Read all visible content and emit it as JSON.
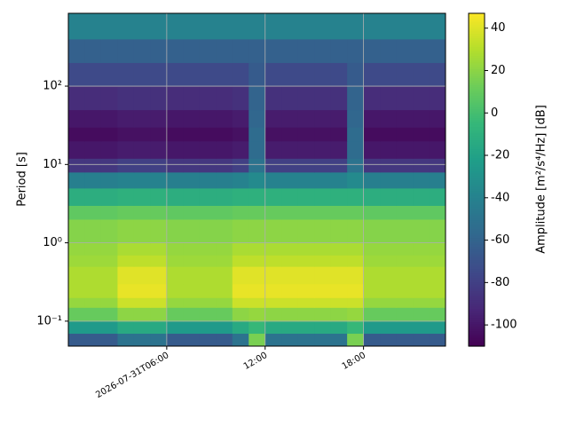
{
  "chart_data": {
    "type": "heatmap",
    "colormap": "viridis",
    "grid": true,
    "ylabel": "Period [s]",
    "colorbar_label": "Amplitude [m²/s⁴/Hz] [dB]",
    "ylog": true,
    "xlim": [
      "2026-07-31T00:00",
      "2026-07-31T23:00"
    ],
    "xticks": [
      {
        "value": "2026-07-31T06:00",
        "label": "2026-07-31T06:00"
      },
      {
        "value": "2026-07-31T12:00",
        "label": "12:00"
      },
      {
        "value": "2026-07-31T18:00",
        "label": "18:00"
      }
    ],
    "ylim": [
      0.048,
      850
    ],
    "yticks": [
      {
        "value": 0.1,
        "label": "10⁻¹"
      },
      {
        "value": 1,
        "label": "10⁰"
      },
      {
        "value": 10,
        "label": "10¹"
      },
      {
        "value": 100,
        "label": "10²"
      }
    ],
    "clim": [
      -110,
      47
    ],
    "cticks": [
      -100,
      -80,
      -60,
      -40,
      -20,
      0,
      20,
      40
    ],
    "x": [
      "2026-07-31T00:00",
      "2026-07-31T01:00",
      "2026-07-31T02:00",
      "2026-07-31T03:00",
      "2026-07-31T04:00",
      "2026-07-31T05:00",
      "2026-07-31T06:00",
      "2026-07-31T07:00",
      "2026-07-31T08:00",
      "2026-07-31T09:00",
      "2026-07-31T10:00",
      "2026-07-31T11:00",
      "2026-07-31T12:00",
      "2026-07-31T13:00",
      "2026-07-31T14:00",
      "2026-07-31T15:00",
      "2026-07-31T16:00",
      "2026-07-31T17:00",
      "2026-07-31T18:00",
      "2026-07-31T19:00",
      "2026-07-31T20:00",
      "2026-07-31T21:00",
      "2026-07-31T22:00",
      "2026-07-31T23:00"
    ],
    "y": [
      0.048,
      0.07,
      0.1,
      0.15,
      0.2,
      0.3,
      0.5,
      0.7,
      1,
      2,
      3,
      5,
      8,
      12,
      20,
      30,
      50,
      100,
      200,
      400,
      850
    ],
    "values": [
      [
        -65,
        -65,
        -65,
        -50,
        -50,
        -50,
        -65,
        -65,
        -65,
        -65,
        -50,
        15,
        -50,
        -50,
        -50,
        -50,
        -50,
        15,
        -65,
        -65,
        -65,
        -65,
        -65
      ],
      [
        -25,
        -25,
        -25,
        -15,
        -15,
        -15,
        -25,
        -25,
        -25,
        -25,
        -15,
        -5,
        -15,
        -15,
        -15,
        -15,
        -15,
        -5,
        -25,
        -25,
        -25,
        -25,
        -25
      ],
      [
        10,
        10,
        10,
        20,
        20,
        20,
        10,
        10,
        10,
        10,
        20,
        22,
        20,
        20,
        20,
        20,
        20,
        22,
        10,
        10,
        10,
        10,
        10
      ],
      [
        22,
        22,
        22,
        35,
        35,
        35,
        22,
        22,
        22,
        22,
        35,
        35,
        35,
        35,
        35,
        35,
        35,
        35,
        22,
        22,
        22,
        22,
        22
      ],
      [
        28,
        28,
        28,
        42,
        42,
        42,
        28,
        28,
        28,
        28,
        42,
        42,
        42,
        42,
        42,
        42,
        42,
        42,
        28,
        28,
        28,
        28,
        28
      ],
      [
        28,
        28,
        28,
        40,
        40,
        40,
        28,
        28,
        28,
        28,
        40,
        40,
        40,
        40,
        40,
        40,
        40,
        40,
        28,
        28,
        28,
        28,
        28
      ],
      [
        24,
        24,
        24,
        32,
        32,
        32,
        24,
        24,
        24,
        24,
        32,
        32,
        32,
        32,
        32,
        32,
        32,
        32,
        24,
        24,
        24,
        24,
        24
      ],
      [
        22,
        22,
        22,
        27,
        27,
        27,
        22,
        22,
        22,
        22,
        27,
        27,
        27,
        27,
        27,
        27,
        27,
        27,
        22,
        22,
        22,
        22,
        22
      ],
      [
        18,
        18,
        18,
        20,
        20,
        20,
        18,
        18,
        18,
        18,
        20,
        20,
        20,
        20,
        20,
        20,
        20,
        20,
        18,
        18,
        18,
        18,
        18
      ],
      [
        8,
        8,
        8,
        10,
        10,
        10,
        8,
        8,
        8,
        8,
        10,
        10,
        10,
        10,
        10,
        10,
        10,
        10,
        8,
        8,
        8,
        8,
        8
      ],
      [
        -12,
        -12,
        -12,
        -10,
        -10,
        -10,
        -12,
        -12,
        -12,
        -12,
        -10,
        -10,
        -10,
        -10,
        -10,
        -10,
        -10,
        -10,
        -12,
        -12,
        -12,
        -12,
        -12
      ],
      [
        -42,
        -42,
        -42,
        -40,
        -40,
        -40,
        -42,
        -42,
        -42,
        -42,
        -40,
        -35,
        -40,
        -40,
        -40,
        -40,
        -40,
        -35,
        -42,
        -42,
        -42,
        -42,
        -42
      ],
      [
        -85,
        -85,
        -85,
        -80,
        -80,
        -80,
        -85,
        -85,
        -85,
        -85,
        -80,
        -50,
        -80,
        -80,
        -80,
        -80,
        -80,
        -50,
        -85,
        -85,
        -85,
        -85,
        -85
      ],
      [
        -100,
        -100,
        -100,
        -98,
        -98,
        -98,
        -100,
        -100,
        -100,
        -100,
        -98,
        -55,
        -98,
        -98,
        -98,
        -98,
        -98,
        -55,
        -100,
        -100,
        -100,
        -100,
        -100
      ],
      [
        -105,
        -105,
        -105,
        -103,
        -103,
        -103,
        -105,
        -105,
        -105,
        -105,
        -103,
        -55,
        -103,
        -103,
        -103,
        -103,
        -103,
        -55,
        -105,
        -105,
        -105,
        -105,
        -105
      ],
      [
        -100,
        -100,
        -100,
        -98,
        -98,
        -98,
        -100,
        -100,
        -100,
        -100,
        -98,
        -58,
        -98,
        -98,
        -98,
        -98,
        -98,
        -58,
        -100,
        -100,
        -100,
        -100,
        -100
      ],
      [
        -90,
        -90,
        -90,
        -88,
        -88,
        -88,
        -90,
        -90,
        -90,
        -90,
        -88,
        -60,
        -88,
        -88,
        -88,
        -88,
        -88,
        -60,
        -90,
        -90,
        -90,
        -90,
        -90
      ],
      [
        -75,
        -75,
        -75,
        -75,
        -75,
        -75,
        -75,
        -75,
        -75,
        -75,
        -75,
        -65,
        -75,
        -75,
        -75,
        -75,
        -75,
        -65,
        -75,
        -75,
        -75,
        -75,
        -75
      ],
      [
        -62,
        -62,
        -62,
        -62,
        -62,
        -62,
        -62,
        -62,
        -62,
        -62,
        -62,
        -62,
        -62,
        -62,
        -62,
        -62,
        -62,
        -62,
        -62,
        -62,
        -62,
        -62,
        -62
      ],
      [
        -40,
        -40,
        -40,
        -40,
        -40,
        -40,
        -40,
        -40,
        -40,
        -40,
        -40,
        -40,
        -40,
        -40,
        -40,
        -40,
        -40,
        -40,
        -40,
        -40,
        -40,
        -40,
        -40
      ]
    ]
  }
}
